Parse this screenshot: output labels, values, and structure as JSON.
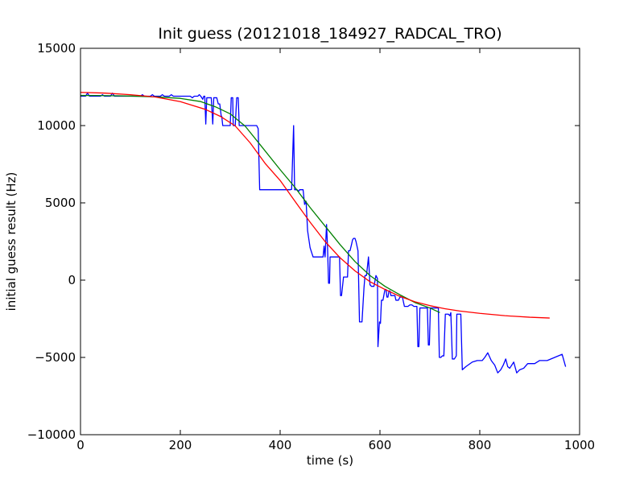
{
  "chart_data": {
    "type": "line",
    "title": "Init guess (20121018_184927_RADCAL_TRO)",
    "xlabel": "time (s)",
    "ylabel": "initial guess result (Hz)",
    "xlim": [
      0,
      1000
    ],
    "ylim": [
      -10000,
      15000
    ],
    "xticks": [
      0,
      200,
      400,
      600,
      800,
      1000
    ],
    "yticks": [
      -10000,
      -5000,
      0,
      5000,
      10000,
      15000
    ],
    "xtick_labels": [
      "0",
      "200",
      "400",
      "600",
      "800",
      "1000"
    ],
    "ytick_labels": [
      "−10000",
      "−5000",
      "0",
      "5000",
      "10000",
      "15000"
    ],
    "grid": false,
    "legend": "none",
    "series": [
      {
        "color": "#0000ff",
        "points": [
          [
            0,
            11900
          ],
          [
            10,
            11900
          ],
          [
            14,
            12100
          ],
          [
            18,
            11900
          ],
          [
            40,
            11900
          ],
          [
            44,
            12000
          ],
          [
            48,
            11900
          ],
          [
            60,
            11900
          ],
          [
            64,
            12100
          ],
          [
            68,
            11900
          ],
          [
            100,
            11900
          ],
          [
            120,
            11900
          ],
          [
            124,
            12000
          ],
          [
            128,
            11900
          ],
          [
            140,
            11900
          ],
          [
            144,
            12000
          ],
          [
            148,
            11900
          ],
          [
            160,
            11900
          ],
          [
            164,
            12000
          ],
          [
            168,
            11900
          ],
          [
            178,
            11900
          ],
          [
            182,
            12000
          ],
          [
            186,
            11900
          ],
          [
            220,
            11900
          ],
          [
            224,
            11800
          ],
          [
            228,
            11900
          ],
          [
            235,
            11900
          ],
          [
            238,
            12000
          ],
          [
            241,
            11900
          ],
          [
            245,
            11700
          ],
          [
            247,
            11900
          ],
          [
            249,
            11900
          ],
          [
            251,
            10100
          ],
          [
            253,
            11800
          ],
          [
            262,
            11800
          ],
          [
            265,
            10100
          ],
          [
            267,
            11800
          ],
          [
            273,
            11800
          ],
          [
            276,
            11400
          ],
          [
            279,
            11400
          ],
          [
            282,
            10600
          ],
          [
            283,
            10600
          ],
          [
            285,
            10000
          ],
          [
            300,
            10000
          ],
          [
            302,
            11800
          ],
          [
            305,
            11800
          ],
          [
            306,
            10000
          ],
          [
            310,
            10000
          ],
          [
            313,
            11800
          ],
          [
            316,
            11800
          ],
          [
            318,
            10000
          ],
          [
            353,
            10000
          ],
          [
            356,
            9800
          ],
          [
            359,
            5850
          ],
          [
            415,
            5850
          ],
          [
            420,
            5850
          ],
          [
            423,
            5870
          ],
          [
            427,
            10000
          ],
          [
            429,
            5850
          ],
          [
            434,
            5850
          ],
          [
            437,
            5750
          ],
          [
            439,
            5850
          ],
          [
            446,
            5850
          ],
          [
            449,
            4900
          ],
          [
            452,
            5100
          ],
          [
            455,
            3200
          ],
          [
            460,
            2100
          ],
          [
            466,
            1500
          ],
          [
            471,
            1500
          ],
          [
            486,
            1500
          ],
          [
            488,
            2200
          ],
          [
            490,
            1500
          ],
          [
            493,
            3600
          ],
          [
            495,
            2100
          ],
          [
            497,
            -200
          ],
          [
            499,
            -200
          ],
          [
            500,
            1500
          ],
          [
            519,
            1500
          ],
          [
            521,
            -1000
          ],
          [
            523,
            -1000
          ],
          [
            527,
            200
          ],
          [
            535,
            200
          ],
          [
            537,
            1900
          ],
          [
            540,
            1900
          ],
          [
            543,
            2300
          ],
          [
            545,
            2600
          ],
          [
            547,
            2700
          ],
          [
            550,
            2700
          ],
          [
            552,
            2500
          ],
          [
            556,
            1900
          ],
          [
            559,
            -2700
          ],
          [
            564,
            -2700
          ],
          [
            568,
            -500
          ],
          [
            570,
            300
          ],
          [
            573,
            300
          ],
          [
            575,
            900
          ],
          [
            577,
            1500
          ],
          [
            580,
            -300
          ],
          [
            583,
            -400
          ],
          [
            588,
            -400
          ],
          [
            592,
            300
          ],
          [
            595,
            100
          ],
          [
            596,
            -4300
          ],
          [
            599,
            -2700
          ],
          [
            601,
            -2800
          ],
          [
            603,
            -1300
          ],
          [
            606,
            -1300
          ],
          [
            610,
            -600
          ],
          [
            612,
            -600
          ],
          [
            614,
            -1100
          ],
          [
            616,
            -1100
          ],
          [
            618,
            -700
          ],
          [
            620,
            -700
          ],
          [
            622,
            -1000
          ],
          [
            630,
            -1000
          ],
          [
            632,
            -1300
          ],
          [
            637,
            -1300
          ],
          [
            640,
            -1100
          ],
          [
            645,
            -1100
          ],
          [
            649,
            -1700
          ],
          [
            656,
            -1700
          ],
          [
            660,
            -1600
          ],
          [
            664,
            -1600
          ],
          [
            668,
            -1700
          ],
          [
            674,
            -1700
          ],
          [
            676,
            -4300
          ],
          [
            678,
            -4300
          ],
          [
            680,
            -1800
          ],
          [
            695,
            -1800
          ],
          [
            697,
            -4200
          ],
          [
            699,
            -4200
          ],
          [
            701,
            -1800
          ],
          [
            717,
            -1800
          ],
          [
            719,
            -5000
          ],
          [
            722,
            -5000
          ],
          [
            725,
            -4900
          ],
          [
            728,
            -4900
          ],
          [
            731,
            -2200
          ],
          [
            737,
            -2200
          ],
          [
            740,
            -2300
          ],
          [
            742,
            -2100
          ],
          [
            745,
            -5100
          ],
          [
            749,
            -5100
          ],
          [
            753,
            -4900
          ],
          [
            754,
            -2200
          ],
          [
            762,
            -2200
          ],
          [
            765,
            -5800
          ],
          [
            772,
            -5600
          ],
          [
            785,
            -5300
          ],
          [
            795,
            -5200
          ],
          [
            805,
            -5200
          ],
          [
            810,
            -5000
          ],
          [
            816,
            -4700
          ],
          [
            823,
            -5200
          ],
          [
            830,
            -5500
          ],
          [
            836,
            -6000
          ],
          [
            842,
            -5800
          ],
          [
            847,
            -5500
          ],
          [
            852,
            -5100
          ],
          [
            856,
            -5600
          ],
          [
            860,
            -5700
          ],
          [
            864,
            -5500
          ],
          [
            868,
            -5300
          ],
          [
            874,
            -6000
          ],
          [
            880,
            -5800
          ],
          [
            888,
            -5700
          ],
          [
            896,
            -5400
          ],
          [
            910,
            -5400
          ],
          [
            920,
            -5200
          ],
          [
            935,
            -5200
          ],
          [
            950,
            -5000
          ],
          [
            965,
            -4800
          ],
          [
            972,
            -5600
          ]
        ]
      },
      {
        "color": "#008000",
        "points": [
          [
            0,
            11950
          ],
          [
            30,
            11945
          ],
          [
            60,
            11935
          ],
          [
            100,
            11910
          ],
          [
            150,
            11860
          ],
          [
            200,
            11760
          ],
          [
            240,
            11560
          ],
          [
            270,
            11220
          ],
          [
            300,
            10760
          ],
          [
            330,
            9960
          ],
          [
            360,
            8760
          ],
          [
            400,
            7150
          ],
          [
            430,
            5990
          ],
          [
            460,
            4700
          ],
          [
            490,
            3500
          ],
          [
            520,
            2300
          ],
          [
            550,
            1200
          ],
          [
            580,
            300
          ],
          [
            610,
            -400
          ],
          [
            640,
            -950
          ],
          [
            670,
            -1450
          ],
          [
            700,
            -1800
          ],
          [
            720,
            -2100
          ]
        ]
      },
      {
        "color": "#ff0000",
        "points": [
          [
            0,
            12150
          ],
          [
            50,
            12100
          ],
          [
            100,
            12000
          ],
          [
            150,
            11850
          ],
          [
            200,
            11550
          ],
          [
            250,
            11050
          ],
          [
            280,
            10600
          ],
          [
            310,
            9980
          ],
          [
            340,
            8880
          ],
          [
            370,
            7550
          ],
          [
            400,
            6450
          ],
          [
            430,
            5090
          ],
          [
            460,
            3750
          ],
          [
            490,
            2500
          ],
          [
            520,
            1450
          ],
          [
            550,
            600
          ],
          [
            580,
            -100
          ],
          [
            610,
            -600
          ],
          [
            640,
            -1050
          ],
          [
            670,
            -1400
          ],
          [
            700,
            -1650
          ],
          [
            730,
            -1850
          ],
          [
            760,
            -2000
          ],
          [
            800,
            -2150
          ],
          [
            850,
            -2300
          ],
          [
            900,
            -2400
          ],
          [
            940,
            -2450
          ]
        ]
      }
    ]
  }
}
